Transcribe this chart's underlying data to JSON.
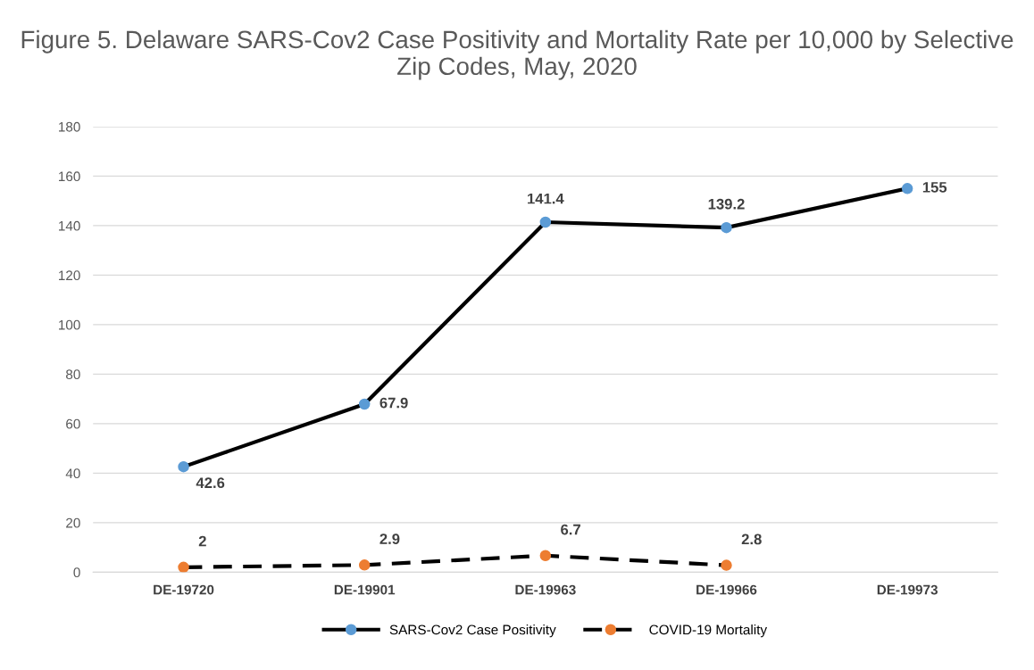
{
  "chart_data": {
    "type": "line",
    "title": "Figure 5. Delaware SARS-Cov2 Case Positivity and Mortality Rate per 10,000 by Selective Zip Codes, May, 2020",
    "categories": [
      "DE-19720",
      "DE-19901",
      "DE-19963",
      "DE-19966",
      "DE-19973"
    ],
    "series": [
      {
        "name": "SARS-Cov2 Case Positivity",
        "color": "#5b9bd5",
        "values": [
          42.6,
          67.9,
          141.4,
          139.2,
          155
        ],
        "line_style": "solid"
      },
      {
        "name": "COVID-19 Mortality",
        "color": "#ed7d31",
        "values": [
          2,
          2.9,
          6.7,
          2.8,
          null
        ],
        "line_style": "dashed"
      }
    ],
    "ylim": [
      0,
      180
    ],
    "yticks": [
      0,
      20,
      40,
      60,
      80,
      100,
      120,
      140,
      160,
      180
    ],
    "grid": "y",
    "legend": "bottom",
    "marker": "circle",
    "data_labels": true
  }
}
